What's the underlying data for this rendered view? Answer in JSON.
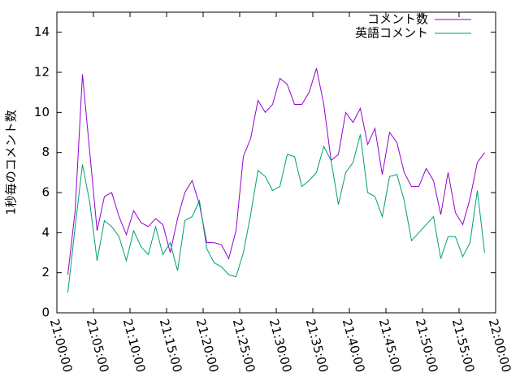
{
  "chart_data": {
    "type": "line",
    "ylabel": "1秒毎のコメント数",
    "x": [
      "21:01:30",
      "21:02:30",
      "21:03:30",
      "21:04:30",
      "21:05:30",
      "21:06:30",
      "21:07:30",
      "21:08:30",
      "21:09:30",
      "21:10:30",
      "21:11:30",
      "21:12:30",
      "21:13:30",
      "21:14:30",
      "21:15:30",
      "21:16:30",
      "21:17:30",
      "21:18:30",
      "21:19:30",
      "21:20:30",
      "21:21:30",
      "21:22:30",
      "21:23:30",
      "21:24:30",
      "21:25:30",
      "21:26:30",
      "21:27:30",
      "21:28:30",
      "21:29:30",
      "21:30:30",
      "21:31:30",
      "21:32:30",
      "21:33:30",
      "21:34:30",
      "21:35:30",
      "21:36:30",
      "21:37:30",
      "21:38:30",
      "21:39:30",
      "21:40:30",
      "21:41:30",
      "21:42:30",
      "21:43:30",
      "21:44:30",
      "21:45:30",
      "21:46:30",
      "21:47:30",
      "21:48:30",
      "21:49:30",
      "21:50:30",
      "21:51:30",
      "21:52:30",
      "21:53:30",
      "21:54:30",
      "21:55:30",
      "21:56:30",
      "21:57:30",
      "21:58:30"
    ],
    "series": [
      {
        "name": "コメント数",
        "color": "#9400d3",
        "values": [
          1.9,
          5.1,
          11.9,
          8.0,
          4.1,
          5.8,
          6.0,
          4.8,
          3.9,
          5.1,
          4.5,
          4.3,
          4.7,
          4.4,
          3.0,
          4.7,
          6.0,
          6.6,
          5.4,
          3.5,
          3.5,
          3.4,
          2.7,
          4.1,
          7.8,
          8.7,
          10.6,
          10.0,
          10.4,
          11.7,
          11.4,
          10.4,
          10.4,
          11.0,
          12.2,
          10.4,
          7.6,
          7.9,
          10.0,
          9.5,
          10.2,
          8.4,
          9.2,
          6.9,
          9.0,
          8.5,
          7.0,
          6.3,
          6.3,
          7.2,
          6.6,
          4.9,
          7.0,
          5.0,
          4.4,
          5.7,
          7.5,
          8.0
        ]
      },
      {
        "name": "英語コメント",
        "color": "#009e73",
        "values": [
          1.0,
          4.3,
          7.4,
          5.5,
          2.6,
          4.6,
          4.3,
          3.8,
          2.6,
          4.1,
          3.3,
          2.9,
          4.3,
          2.9,
          3.5,
          2.1,
          4.6,
          4.8,
          5.6,
          3.2,
          2.5,
          2.3,
          1.9,
          1.8,
          3.0,
          4.9,
          7.1,
          6.8,
          6.1,
          6.3,
          7.9,
          7.8,
          6.3,
          6.6,
          7.0,
          8.3,
          7.6,
          5.4,
          7.0,
          7.5,
          8.9,
          6.0,
          5.8,
          4.8,
          6.8,
          6.9,
          5.6,
          3.6,
          4.0,
          4.4,
          4.8,
          2.7,
          3.8,
          3.8,
          2.8,
          3.5,
          6.1,
          3.0
        ]
      }
    ],
    "xlim": [
      "21:00:00",
      "22:00:00"
    ],
    "xticks": [
      "21:00:00",
      "21:05:00",
      "21:10:00",
      "21:15:00",
      "21:20:00",
      "21:25:00",
      "21:30:00",
      "21:35:00",
      "21:40:00",
      "21:45:00",
      "21:50:00",
      "21:55:00",
      "22:00:00"
    ],
    "ylim": [
      0,
      15
    ],
    "yticks": [
      0,
      2,
      4,
      6,
      8,
      10,
      12,
      14
    ],
    "legend": "top-right"
  }
}
